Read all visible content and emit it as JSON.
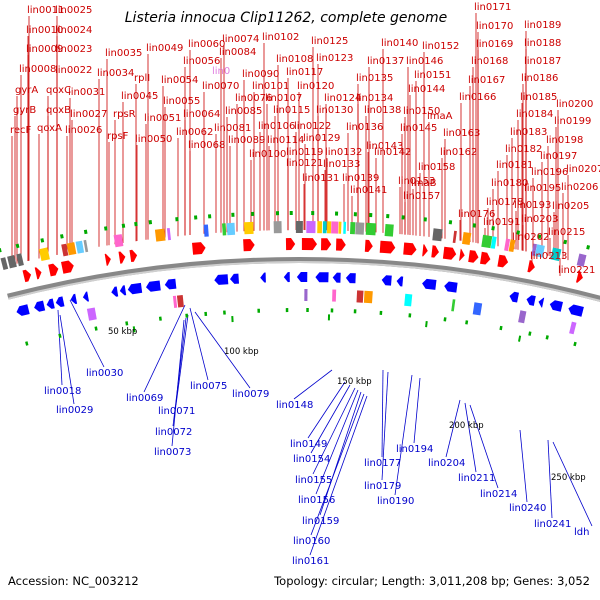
{
  "title": "Listeria innocua Clip11262, complete genome",
  "footer": {
    "accession": "Accession: NC_003212",
    "summary": "Topology: circular; Length: 3,011,208 bp; Genes: 3,052"
  },
  "colors": {
    "forward_label": "#cc0000",
    "reverse_label": "#0000cc",
    "forward_arrow": "#ff0000",
    "reverse_arrow": "#0000ff",
    "tick": "#00aa00",
    "backbone": "#888888",
    "highlight_label": "#e080e0"
  },
  "tick_labels": [
    "50 kbp",
    "100 kbp",
    "150 kbp",
    "200 kbp",
    "250 kbp"
  ],
  "forward_labels": [
    "lin0011",
    "lin0025",
    "lin0010",
    "lin0024",
    "lin0009",
    "lin0023",
    "lin0035",
    "lin0049",
    "lin0060",
    "lin0074",
    "lin0102",
    "lin0125",
    "lin0140",
    "lin0152",
    "lin0171",
    "lin0189",
    "lin0170",
    "lin0188",
    "lin0169",
    "lin0084",
    "lin0056",
    "lin0108",
    "lin0123",
    "lin0137",
    "lin0146",
    "lin0168",
    "lin0187",
    "lin0008",
    "lin0022",
    "lin0034",
    "rplI",
    "lin0054",
    "lin0090",
    "lin0117",
    "lin0135",
    "lin0151",
    "lin0167",
    "lin0186",
    "qoxC",
    "lin0031",
    "lin0101",
    "lin0120",
    "lin0144",
    "lin0166",
    "lin0185",
    "gyrA",
    "lin0045",
    "lin0070",
    "lin0076",
    "lin0107",
    "lin0124",
    "lin0134",
    "lin0200",
    "gyrB",
    "qoxB",
    "lin0027",
    "rpsR",
    "lin0051",
    "lin0055",
    "lin0064",
    "lin0085",
    "lin0115",
    "lin0130",
    "lin0138",
    "lin0150",
    "lin0184",
    "lin0199",
    "recF",
    "qoxA",
    "lin0026",
    "rpsF",
    "lin0050",
    "lin0062",
    "lin0081",
    "lin0106",
    "lin0122",
    "lin0136",
    "lin0145",
    "lmaA",
    "lin0183",
    "lin0198",
    "lin0068",
    "lin0089",
    "lin0114",
    "lin0129",
    "lin0143",
    "lin0163",
    "lin0182",
    "lin0197",
    "lin0100",
    "lin0119",
    "lin0132",
    "lin0142",
    "lin0162",
    "lin0181",
    "lin0196",
    "lin0207",
    "lin0121",
    "lin0133",
    "lin0158",
    "lin0180",
    "lin0195",
    "lin0206",
    "lin0131",
    "lin0139",
    "lmaB",
    "lin0178",
    "lin0193",
    "lin0205",
    "lin0141",
    "lin0153",
    "lin0176",
    "lin0191",
    "lin0203",
    "lin0157",
    "lin0202",
    "lin0215",
    "lin0213",
    "lin0221"
  ],
  "highlight_label": "lin0",
  "reverse_labels": [
    "lin0018",
    "lin0030",
    "lin0029",
    "lin0069",
    "lin0075",
    "lin0079",
    "lin0071",
    "lin0072",
    "lin0073",
    "lin0148",
    "lin0149",
    "lin0154",
    "lin0155",
    "lin0156",
    "lin0159",
    "lin0160",
    "lin0161",
    "lin0177",
    "lin0179",
    "lin0194",
    "lin0190",
    "lin0204",
    "lin0211",
    "lin0214",
    "lin0240",
    "lin0241",
    "ldh"
  ]
}
